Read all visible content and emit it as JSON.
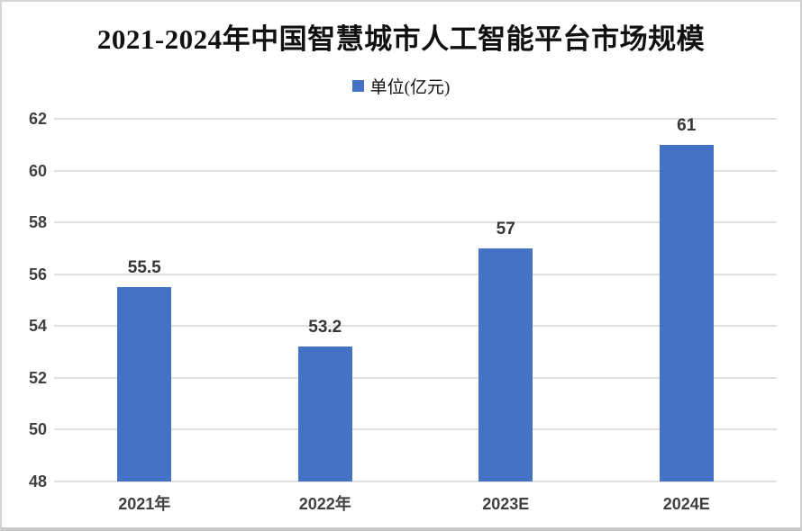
{
  "chart_data": {
    "type": "bar",
    "title": "2021-2024年中国智慧城市人工智能平台市场规模",
    "legend": {
      "label": "单位(亿元)",
      "position": "top-center"
    },
    "categories": [
      "2021年",
      "2022年",
      "2023E",
      "2024E"
    ],
    "values": [
      55.5,
      53.2,
      57,
      61
    ],
    "data_labels": [
      "55.5",
      "53.2",
      "57",
      "61"
    ],
    "yticks": [
      48,
      50,
      52,
      54,
      56,
      58,
      60,
      62
    ],
    "ylim": [
      48,
      62
    ],
    "xlabel": "",
    "ylabel": "",
    "grid": true,
    "legend_visible": true,
    "colors": {
      "bar": "#4472C4",
      "gridline": "#e0e0e0",
      "axis_text": "#404040",
      "title_text": "#111111"
    }
  }
}
